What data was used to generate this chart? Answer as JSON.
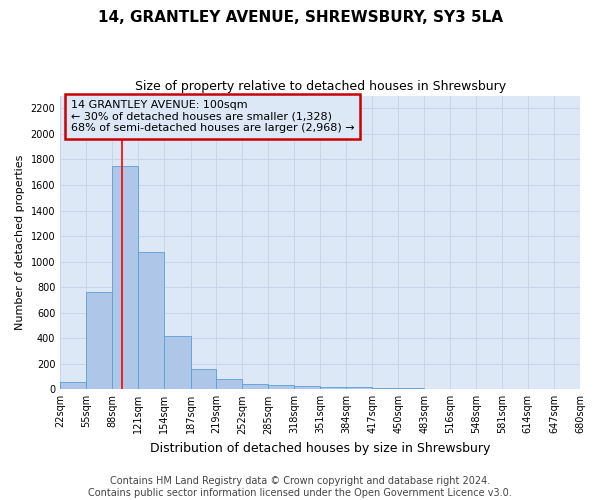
{
  "title": "14, GRANTLEY AVENUE, SHREWSBURY, SY3 5LA",
  "subtitle": "Size of property relative to detached houses in Shrewsbury",
  "xlabel": "Distribution of detached houses by size in Shrewsbury",
  "ylabel": "Number of detached properties",
  "footer_line1": "Contains HM Land Registry data © Crown copyright and database right 2024.",
  "footer_line2": "Contains public sector information licensed under the Open Government Licence v3.0.",
  "bin_edges": [
    22,
    55,
    88,
    121,
    154,
    187,
    219,
    252,
    285,
    318,
    351,
    384,
    417,
    450,
    483,
    516,
    548,
    581,
    614,
    647,
    680
  ],
  "bar_heights": [
    55,
    760,
    1750,
    1075,
    420,
    160,
    80,
    45,
    35,
    25,
    20,
    15,
    10,
    8,
    5,
    4,
    3,
    2,
    1,
    1
  ],
  "bar_color": "#aec6e8",
  "bar_edge_color": "#5a9fd4",
  "grid_color": "#c8d4e8",
  "red_line_x": 100,
  "annotation_text": "14 GRANTLEY AVENUE: 100sqm\n← 30% of detached houses are smaller (1,328)\n68% of semi-detached houses are larger (2,968) →",
  "annotation_box_color": "#cc0000",
  "plot_bg_color": "#dce8f5",
  "fig_bg_color": "#ffffff",
  "ylim": [
    0,
    2300
  ],
  "yticks": [
    0,
    200,
    400,
    600,
    800,
    1000,
    1200,
    1400,
    1600,
    1800,
    2000,
    2200
  ],
  "title_fontsize": 11,
  "subtitle_fontsize": 9,
  "ylabel_fontsize": 8,
  "xlabel_fontsize": 9,
  "tick_fontsize": 7,
  "annot_fontsize": 8,
  "footer_fontsize": 7
}
